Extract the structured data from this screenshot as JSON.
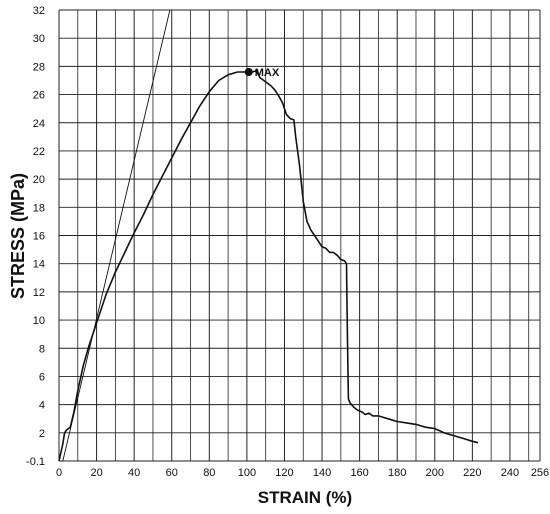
{
  "chart_data": {
    "type": "line",
    "xlabel": "STRAIN (%)",
    "ylabel": "STRESS (MPa)",
    "xlim": [
      0,
      256
    ],
    "ylim": [
      0,
      32
    ],
    "x_tick_labels": [
      "0",
      "20",
      "40",
      "60",
      "80",
      "100",
      "120",
      "140",
      "160",
      "180",
      "200",
      "220",
      "240",
      "256"
    ],
    "y_tick_labels": [
      "32",
      "30",
      "28",
      "26",
      "24",
      "22",
      "20",
      "18",
      "16",
      "14",
      "12",
      "10",
      "8",
      "6",
      "4",
      "2",
      "-0.1"
    ],
    "grid": true,
    "colors": {
      "line": "#111111",
      "grid": "#222222",
      "background": "#ffffff"
    },
    "series": [
      {
        "x": [
          0,
          2,
          3,
          4,
          6,
          8,
          10,
          13,
          16,
          20,
          25,
          30,
          35,
          40,
          45,
          50,
          55,
          60,
          65,
          70,
          75,
          80,
          85,
          90,
          95,
          100,
          103,
          105,
          107,
          110,
          113,
          115,
          117,
          119,
          121,
          123,
          125,
          126,
          128,
          130,
          132,
          134,
          136,
          138,
          140,
          142,
          144,
          146,
          148,
          150,
          152,
          153,
          153.5,
          154,
          155,
          157,
          159,
          161,
          163,
          165,
          167,
          170,
          175,
          180,
          185,
          190,
          195,
          200,
          205,
          210,
          215,
          220,
          223
        ],
        "y": [
          0,
          1.2,
          2.0,
          2.2,
          2.4,
          3.5,
          5.0,
          6.8,
          8.2,
          9.8,
          11.8,
          13.4,
          14.8,
          16.2,
          17.5,
          18.9,
          20.2,
          21.5,
          22.8,
          24.0,
          25.2,
          26.2,
          27.0,
          27.4,
          27.6,
          27.6,
          27.6,
          27.7,
          27.2,
          26.9,
          26.6,
          26.3,
          25.9,
          25.4,
          24.6,
          24.3,
          24.2,
          23.0,
          21.0,
          18.4,
          17.0,
          16.4,
          16.0,
          15.6,
          15.2,
          15.1,
          14.8,
          14.8,
          14.6,
          14.3,
          14.2,
          14.0,
          9.0,
          4.4,
          4.1,
          3.8,
          3.6,
          3.5,
          3.3,
          3.4,
          3.2,
          3.2,
          3.0,
          2.8,
          2.7,
          2.6,
          2.4,
          2.3,
          2.0,
          1.8,
          1.6,
          1.4,
          1.3
        ]
      },
      {
        "x": [
          2,
          59
        ],
        "y": [
          0,
          32
        ]
      }
    ],
    "annotations": [
      {
        "text": "MAX",
        "x": 101,
        "y": 27.6
      }
    ]
  }
}
